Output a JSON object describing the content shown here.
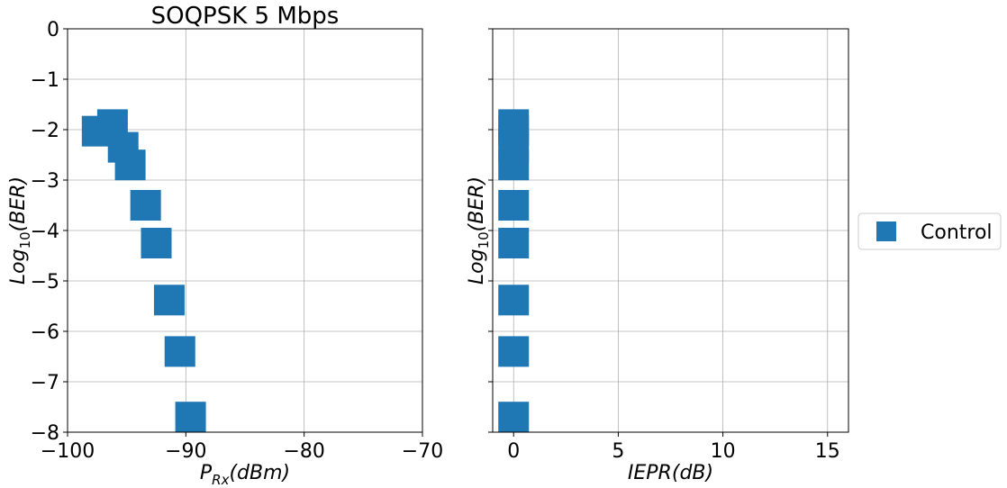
{
  "chart_data": [
    {
      "type": "scatter",
      "title": "SOQPSK 5 Mbps",
      "xlabel": {
        "main": "P",
        "sub": "Rx",
        "rest": "(dBm)"
      },
      "ylabel": {
        "main": "Log",
        "sub": "10",
        "rest": "(BER)"
      },
      "xlim": [
        -100,
        -70
      ],
      "ylim": [
        -8,
        0
      ],
      "xticks": [
        -100,
        -90,
        -80,
        -70
      ],
      "xtick_labels": [
        "−100",
        "−90",
        "−80",
        "−70"
      ],
      "yticks": [
        0,
        -1,
        -2,
        -3,
        -4,
        -5,
        -6,
        -7,
        -8
      ],
      "ytick_labels": [
        "0",
        "−1",
        "−2",
        "−3",
        "−4",
        "−5",
        "−6",
        "−7",
        "−8"
      ],
      "grid": true,
      "series": [
        {
          "name": "Control",
          "color": "#1f77b4",
          "marker": "square",
          "x": [
            -97.5,
            -96.2,
            -95.3,
            -94.7,
            -93.4,
            -92.5,
            -91.4,
            -90.5,
            -89.6
          ],
          "y": [
            -2.03,
            -1.9,
            -2.35,
            -2.7,
            -3.5,
            -4.25,
            -5.38,
            -6.4,
            -7.7
          ]
        }
      ]
    },
    {
      "type": "scatter",
      "title": "",
      "xlabel": {
        "main": "IEPR",
        "sub": "",
        "rest": "(dB)"
      },
      "ylabel": {
        "main": "Log",
        "sub": "10",
        "rest": "(BER)"
      },
      "xlim": [
        -1,
        16
      ],
      "ylim": [
        -8,
        0
      ],
      "xticks": [
        0,
        5,
        10,
        15
      ],
      "xtick_labels": [
        "0",
        "5",
        "10",
        "15"
      ],
      "yticks": [
        0,
        -1,
        -2,
        -3,
        -4,
        -5,
        -6,
        -7,
        -8
      ],
      "ytick_labels": [],
      "grid": true,
      "series": [
        {
          "name": "Control",
          "color": "#1f77b4",
          "marker": "square",
          "x": [
            0,
            0,
            0,
            0,
            0,
            0,
            0,
            0,
            0
          ],
          "y": [
            -2.03,
            -1.9,
            -2.35,
            -2.7,
            -3.5,
            -4.25,
            -5.38,
            -6.4,
            -7.7
          ]
        }
      ]
    }
  ],
  "legend": {
    "placement": "center-right",
    "entries": [
      {
        "label": "Control",
        "color": "#1f77b4",
        "marker": "square"
      }
    ]
  }
}
